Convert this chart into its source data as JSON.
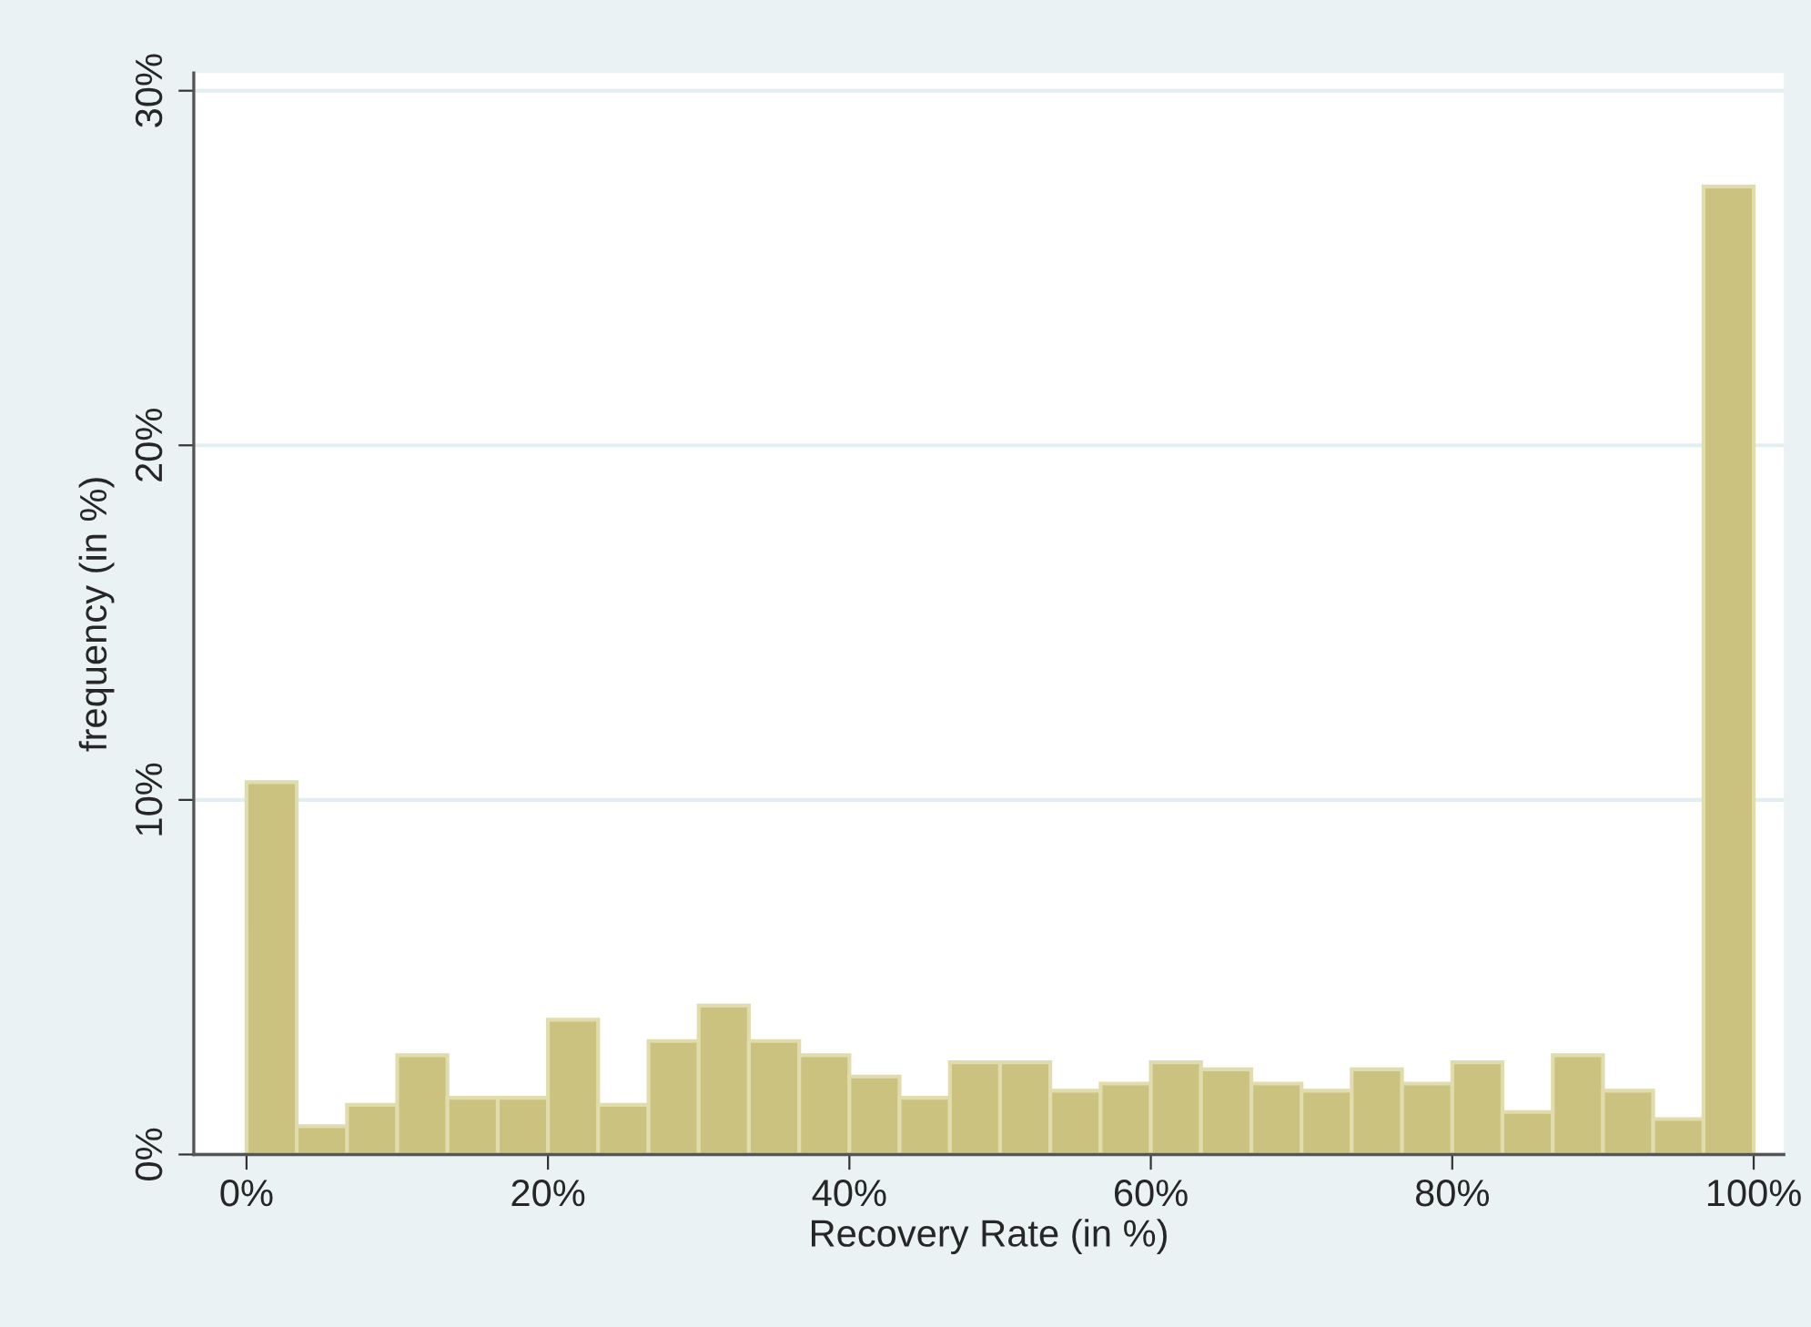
{
  "chart_data": {
    "type": "histogram",
    "xlabel": "Recovery Rate (in %)",
    "ylabel": "frequency (in %)",
    "bins": [
      0,
      3.33,
      6.67,
      10,
      13.33,
      16.67,
      20,
      23.33,
      26.67,
      30,
      33.33,
      36.67,
      40,
      43.33,
      46.67,
      50,
      53.33,
      56.67,
      60,
      63.33,
      66.67,
      70,
      73.33,
      76.67,
      80,
      83.33,
      86.67,
      90,
      93.33,
      96.67,
      100
    ],
    "values": [
      10.5,
      0.8,
      1.4,
      2.8,
      1.6,
      1.6,
      3.8,
      1.4,
      3.2,
      4.2,
      3.2,
      2.8,
      2.2,
      1.6,
      2.6,
      2.6,
      1.8,
      2.0,
      2.6,
      2.4,
      2.0,
      1.8,
      2.4,
      2.0,
      2.6,
      1.2,
      2.8,
      1.8,
      1.0,
      27.3
    ],
    "color": "#cbc280",
    "xlim": [
      -3.5,
      102
    ],
    "ylim": [
      0,
      30.5
    ],
    "xticks": [
      {
        "value": 0,
        "label": "0%"
      },
      {
        "value": 20,
        "label": "20%"
      },
      {
        "value": 40,
        "label": "40%"
      },
      {
        "value": 60,
        "label": "60%"
      },
      {
        "value": 80,
        "label": "80%"
      },
      {
        "value": 100,
        "label": "100%"
      }
    ],
    "yticks": [
      {
        "value": 0,
        "label": "0%"
      },
      {
        "value": 10,
        "label": "10%"
      },
      {
        "value": 20,
        "label": "20%"
      },
      {
        "value": 30,
        "label": "30%"
      }
    ],
    "grid": "y"
  }
}
